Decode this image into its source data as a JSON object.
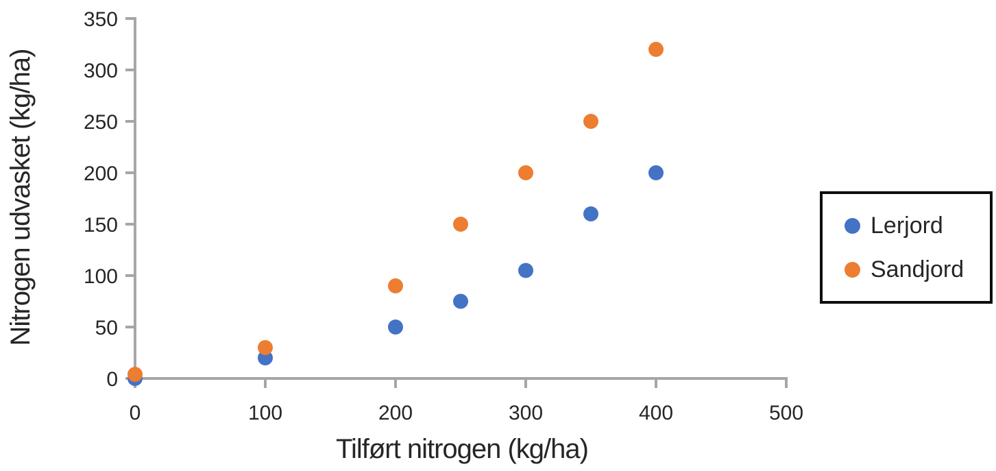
{
  "chart_data": {
    "type": "scatter",
    "xlabel": "Tilført nitrogen (kg/ha)",
    "ylabel": "Nitrogen udvasket (kg/ha)",
    "xlim": [
      0,
      500
    ],
    "ylim": [
      0,
      350
    ],
    "x_ticks": [
      0,
      100,
      200,
      300,
      400,
      500
    ],
    "y_ticks": [
      0,
      50,
      100,
      150,
      200,
      250,
      300,
      350
    ],
    "grid": false,
    "legend_position": "right",
    "marker_radius": 11,
    "axis_color": "#a6a6a6",
    "text_color": "#262626",
    "legend_border_color": "#0d0d0d",
    "series": [
      {
        "name": "Lerjord",
        "color": "#4472c4",
        "marker": "circle",
        "points": [
          [
            0,
            0
          ],
          [
            100,
            20
          ],
          [
            200,
            50
          ],
          [
            250,
            75
          ],
          [
            300,
            105
          ],
          [
            350,
            160
          ],
          [
            400,
            200
          ]
        ]
      },
      {
        "name": "Sandjord",
        "color": "#ed7d31",
        "marker": "circle",
        "points": [
          [
            0,
            4
          ],
          [
            100,
            30
          ],
          [
            200,
            90
          ],
          [
            250,
            150
          ],
          [
            300,
            200
          ],
          [
            350,
            250
          ],
          [
            400,
            320
          ]
        ]
      }
    ]
  }
}
